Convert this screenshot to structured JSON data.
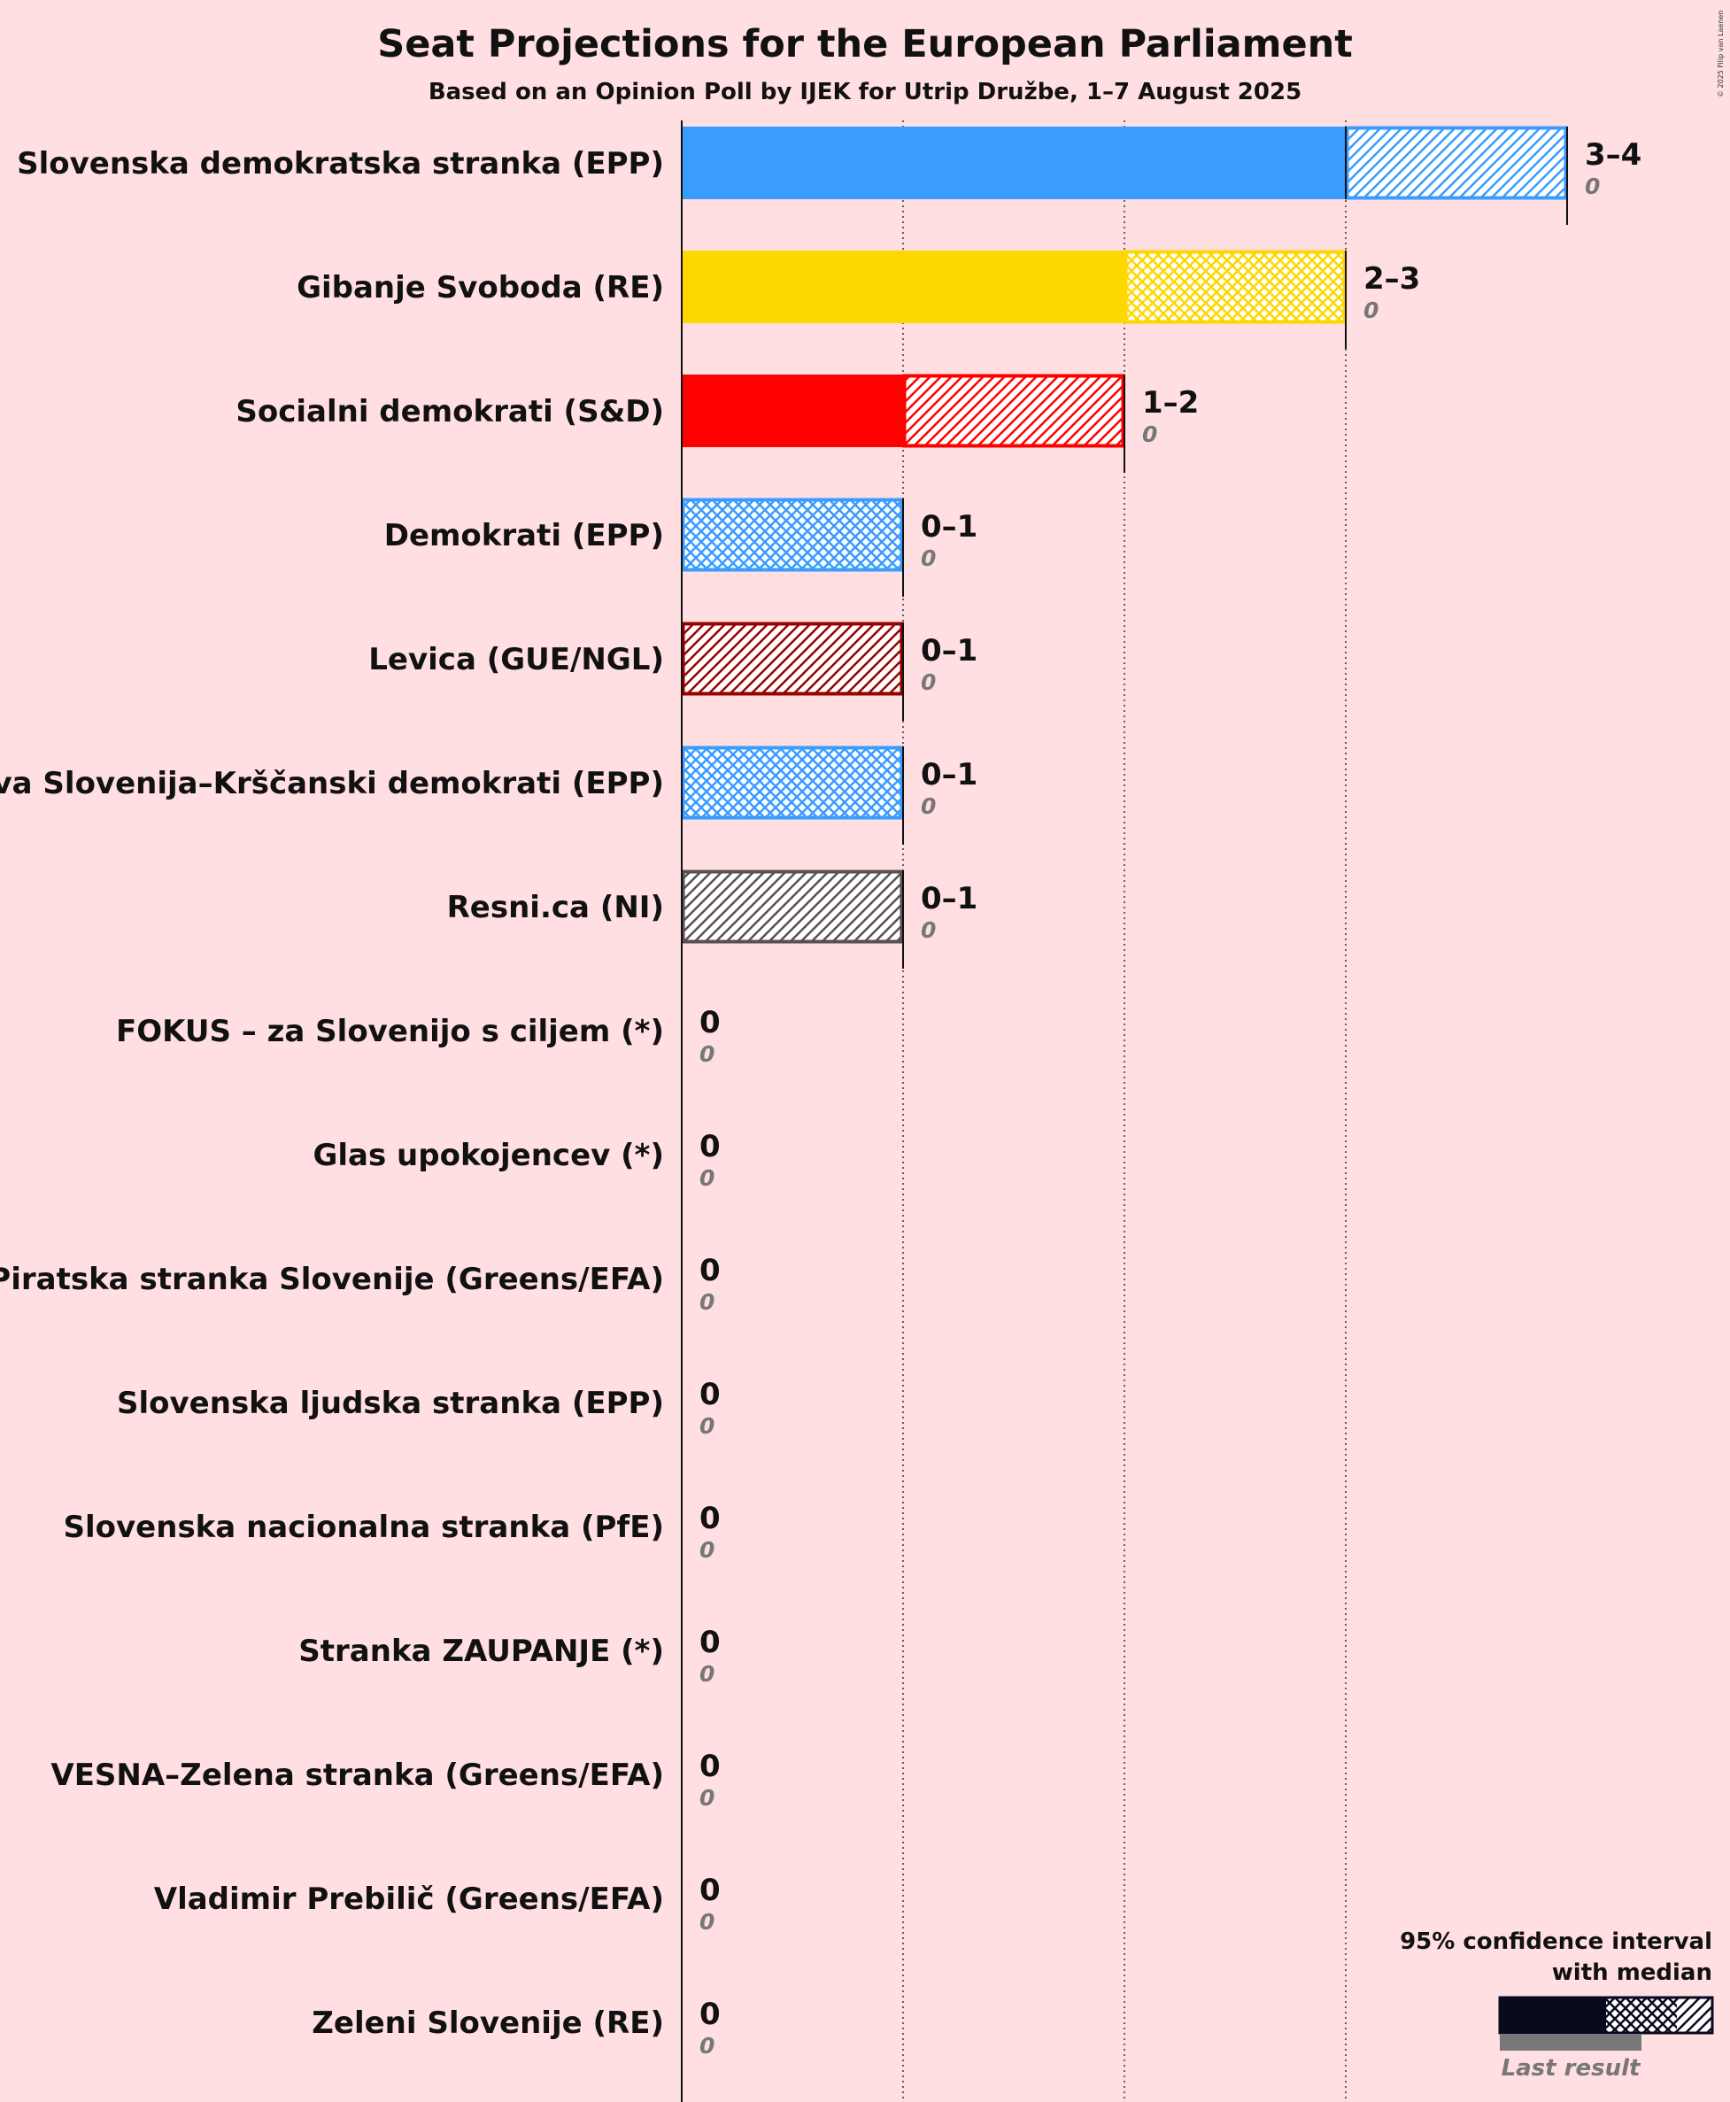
{
  "copyright": "© 2025 Filip van Laenen",
  "chart_data": {
    "type": "bar",
    "orientation": "horizontal",
    "title": "Seat Projections for the European Parliament",
    "subtitle": "Based on an Opinion Poll by IJEK for Utrip Družbe, 1–7 August 2025",
    "xlim": [
      0,
      4
    ],
    "gridlines": [
      1,
      2,
      3
    ],
    "parties": [
      {
        "name": "Slovenska demokratska stranka (EPP)",
        "color": "#3A9CFF",
        "low": 3,
        "median": 3,
        "high": 4,
        "range_label": "3–4",
        "last_result": "0",
        "pattern": "hatch"
      },
      {
        "name": "Gibanje Svoboda (RE)",
        "color": "#FFD700",
        "low": 2,
        "median": 3,
        "high": 3,
        "range_label": "2–3",
        "last_result": "0",
        "pattern": "cross"
      },
      {
        "name": "Socialni demokrati (S&D)",
        "color": "#FF0000",
        "low": 1,
        "median": 2,
        "high": 2,
        "range_label": "1–2",
        "last_result": "0",
        "pattern": "hatch"
      },
      {
        "name": "Demokrati (EPP)",
        "color": "#3A9CFF",
        "low": 0,
        "median": 1,
        "high": 1,
        "range_label": "0–1",
        "last_result": "0",
        "pattern": "cross"
      },
      {
        "name": "Levica (GUE/NGL)",
        "color": "#990000",
        "low": 0,
        "median": 0,
        "high": 1,
        "range_label": "0–1",
        "last_result": "0",
        "pattern": "hatch"
      },
      {
        "name": "Nova Slovenija–Krščanski demokrati (EPP)",
        "color": "#3A9CFF",
        "low": 0,
        "median": 1,
        "high": 1,
        "range_label": "0–1",
        "last_result": "0",
        "pattern": "cross"
      },
      {
        "name": "Resni.ca (NI)",
        "color": "#5A5050",
        "low": 0,
        "median": 0,
        "high": 1,
        "range_label": "0–1",
        "last_result": "0",
        "pattern": "hatch"
      },
      {
        "name": "FOKUS – za Slovenijo s ciljem (*)",
        "color": "#888888",
        "low": 0,
        "median": 0,
        "high": 0,
        "range_label": "0",
        "last_result": "0",
        "pattern": "none"
      },
      {
        "name": "Glas upokojencev (*)",
        "color": "#888888",
        "low": 0,
        "median": 0,
        "high": 0,
        "range_label": "0",
        "last_result": "0",
        "pattern": "none"
      },
      {
        "name": "Piratska stranka Slovenije (Greens/EFA)",
        "color": "#888888",
        "low": 0,
        "median": 0,
        "high": 0,
        "range_label": "0",
        "last_result": "0",
        "pattern": "none"
      },
      {
        "name": "Slovenska ljudska stranka (EPP)",
        "color": "#888888",
        "low": 0,
        "median": 0,
        "high": 0,
        "range_label": "0",
        "last_result": "0",
        "pattern": "none"
      },
      {
        "name": "Slovenska nacionalna stranka (PfE)",
        "color": "#888888",
        "low": 0,
        "median": 0,
        "high": 0,
        "range_label": "0",
        "last_result": "0",
        "pattern": "none"
      },
      {
        "name": "Stranka ZAUPANJE (*)",
        "color": "#888888",
        "low": 0,
        "median": 0,
        "high": 0,
        "range_label": "0",
        "last_result": "0",
        "pattern": "none"
      },
      {
        "name": "VESNA–Zelena stranka (Greens/EFA)",
        "color": "#888888",
        "low": 0,
        "median": 0,
        "high": 0,
        "range_label": "0",
        "last_result": "0",
        "pattern": "none"
      },
      {
        "name": "Vladimir Prebilič (Greens/EFA)",
        "color": "#888888",
        "low": 0,
        "median": 0,
        "high": 0,
        "range_label": "0",
        "last_result": "0",
        "pattern": "none"
      },
      {
        "name": "Zeleni Slovenije (RE)",
        "color": "#888888",
        "low": 0,
        "median": 0,
        "high": 0,
        "range_label": "0",
        "last_result": "0",
        "pattern": "none"
      }
    ],
    "legend": {
      "line1": "95% confidence interval",
      "line2": "with median",
      "last_result": "Last result",
      "placement": "bottom-right"
    }
  }
}
